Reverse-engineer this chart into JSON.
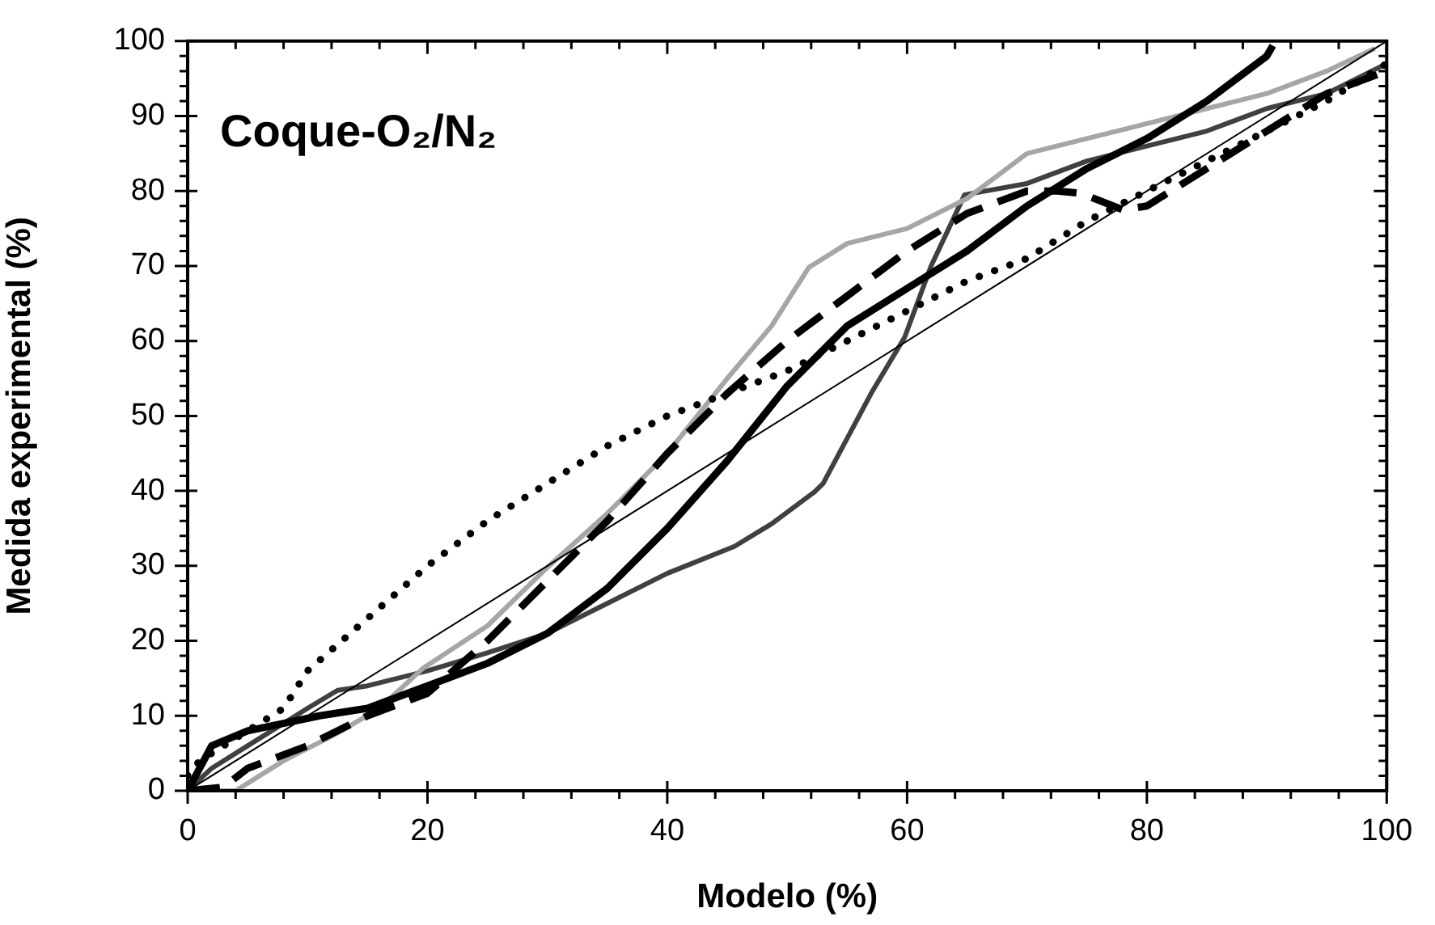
{
  "chart_data": {
    "type": "line",
    "title": "Coque-O₂/N₂",
    "xlabel": "Modelo (%)",
    "ylabel": "Medida experimental (%)",
    "xlim": [
      0,
      100
    ],
    "ylim": [
      0,
      100
    ],
    "xticks": [
      0,
      {
        "value": 4,
        "label": null
      },
      {
        "value": 8,
        "label": null
      },
      {
        "value": 12,
        "label": null
      },
      {
        "value": 16,
        "label": null
      },
      20,
      {
        "value": 24,
        "label": null
      },
      {
        "value": 28,
        "label": null
      },
      {
        "value": 32,
        "label": null
      },
      {
        "value": 36,
        "label": null
      },
      40,
      {
        "value": 44,
        "label": null
      },
      {
        "value": 48,
        "label": null
      },
      {
        "value": 52,
        "label": null
      },
      {
        "value": 56,
        "label": null
      },
      60,
      {
        "value": 64,
        "label": null
      },
      {
        "value": 68,
        "label": null
      },
      {
        "value": 72,
        "label": null
      },
      {
        "value": 76,
        "label": null
      },
      80,
      {
        "value": 84,
        "label": null
      },
      {
        "value": 88,
        "label": null
      },
      {
        "value": 92,
        "label": null
      },
      {
        "value": 96,
        "label": null
      },
      100
    ],
    "yticks": [
      0,
      {
        "value": 2,
        "label": null
      },
      {
        "value": 4,
        "label": null
      },
      {
        "value": 6,
        "label": null
      },
      {
        "value": 8,
        "label": null
      },
      10,
      {
        "value": 12,
        "label": null
      },
      {
        "value": 14,
        "label": null
      },
      {
        "value": 16,
        "label": null
      },
      {
        "value": 18,
        "label": null
      },
      20,
      {
        "value": 22,
        "label": null
      },
      {
        "value": 24,
        "label": null
      },
      {
        "value": 26,
        "label": null
      },
      {
        "value": 28,
        "label": null
      },
      30,
      {
        "value": 32,
        "label": null
      },
      {
        "value": 34,
        "label": null
      },
      {
        "value": 36,
        "label": null
      },
      {
        "value": 38,
        "label": null
      },
      40,
      {
        "value": 42,
        "label": null
      },
      {
        "value": 44,
        "label": null
      },
      {
        "value": 46,
        "label": null
      },
      {
        "value": 48,
        "label": null
      },
      50,
      {
        "value": 52,
        "label": null
      },
      {
        "value": 54,
        "label": null
      },
      {
        "value": 56,
        "label": null
      },
      {
        "value": 58,
        "label": null
      },
      60,
      {
        "value": 62,
        "label": null
      },
      {
        "value": 64,
        "label": null
      },
      {
        "value": 66,
        "label": null
      },
      {
        "value": 68,
        "label": null
      },
      70,
      {
        "value": 72,
        "label": null
      },
      {
        "value": 74,
        "label": null
      },
      {
        "value": 76,
        "label": null
      },
      {
        "value": 78,
        "label": null
      },
      80,
      {
        "value": 82,
        "label": null
      },
      {
        "value": 84,
        "label": null
      },
      {
        "value": 86,
        "label": null
      },
      {
        "value": 88,
        "label": null
      },
      90,
      {
        "value": 92,
        "label": null
      },
      {
        "value": 94,
        "label": null
      },
      {
        "value": 96,
        "label": null
      },
      {
        "value": 98,
        "label": null
      },
      100
    ],
    "grid": false,
    "legend": false,
    "marker": "none",
    "series": [
      {
        "color": "#000000",
        "line_style": "solid",
        "x": [
          0,
          100
        ],
        "values": [
          0,
          100
        ]
      },
      {
        "color": "#000000",
        "line_style": "solid",
        "x": [
          0,
          1,
          2,
          5,
          8,
          11,
          15,
          20,
          25,
          30,
          35,
          40,
          45,
          50,
          55,
          60,
          65,
          70,
          75,
          80,
          85,
          90,
          90.5
        ],
        "values": [
          0,
          3,
          6,
          8,
          9,
          10,
          11,
          14,
          17,
          21,
          27,
          35,
          44,
          54,
          62,
          67,
          72,
          78,
          83,
          87,
          92,
          98,
          99.4
        ]
      },
      {
        "color": "#000000",
        "line_style": "dashed",
        "x": [
          0,
          3,
          5,
          10,
          15,
          20,
          25,
          30,
          35,
          40,
          45,
          50,
          55,
          60,
          65,
          70,
          72.5,
          74.5,
          78,
          80,
          85,
          90,
          95,
          100
        ],
        "values": [
          0,
          0.5,
          3,
          6,
          10,
          13,
          20,
          28,
          36,
          45,
          53,
          60,
          66,
          72,
          77,
          80,
          80,
          79.7,
          77.5,
          78,
          83,
          88,
          93,
          96
        ]
      },
      {
        "color": "#000000",
        "line_style": "dotted",
        "x": [
          0,
          1,
          5,
          8,
          10,
          15,
          20,
          25,
          30,
          35,
          40,
          45,
          50,
          55,
          60,
          65,
          70,
          75,
          80,
          85,
          90,
          95,
          100
        ],
        "values": [
          2,
          4,
          8,
          11,
          16,
          23,
          30,
          36,
          41,
          46,
          50,
          53,
          56,
          60,
          64,
          68,
          71,
          76,
          80,
          84,
          88,
          92,
          97
        ]
      },
      {
        "color": "#a6a6a6",
        "line_style": "solid",
        "x": [
          0,
          3,
          4,
          8,
          12.5,
          16,
          19.6,
          25,
          30,
          35,
          40,
          45,
          48.7,
          51.8,
          55,
          60,
          65,
          70,
          75,
          80,
          85,
          90,
          95,
          99
        ],
        "values": [
          0,
          0,
          0,
          4,
          7.7,
          11,
          16.3,
          22,
          29.8,
          37,
          45,
          55,
          62,
          69.8,
          73,
          75,
          79,
          85,
          87,
          89,
          91,
          93,
          96,
          99
        ]
      },
      {
        "color": "#404040",
        "line_style": "solid",
        "x": [
          0,
          2,
          5,
          10,
          12.5,
          15,
          20,
          25,
          30,
          35,
          40,
          45.6,
          48.7,
          52.3,
          53,
          54.5,
          57,
          59.8,
          62,
          64.8,
          70,
          75,
          80,
          85,
          90,
          95,
          100
        ],
        "values": [
          0,
          3,
          6,
          11,
          13.4,
          14,
          16,
          18.4,
          21,
          25,
          29,
          32.6,
          35.6,
          39.9,
          41,
          45.5,
          53,
          60.5,
          70,
          79.5,
          81,
          84,
          86,
          88,
          91,
          93,
          97
        ]
      }
    ]
  }
}
